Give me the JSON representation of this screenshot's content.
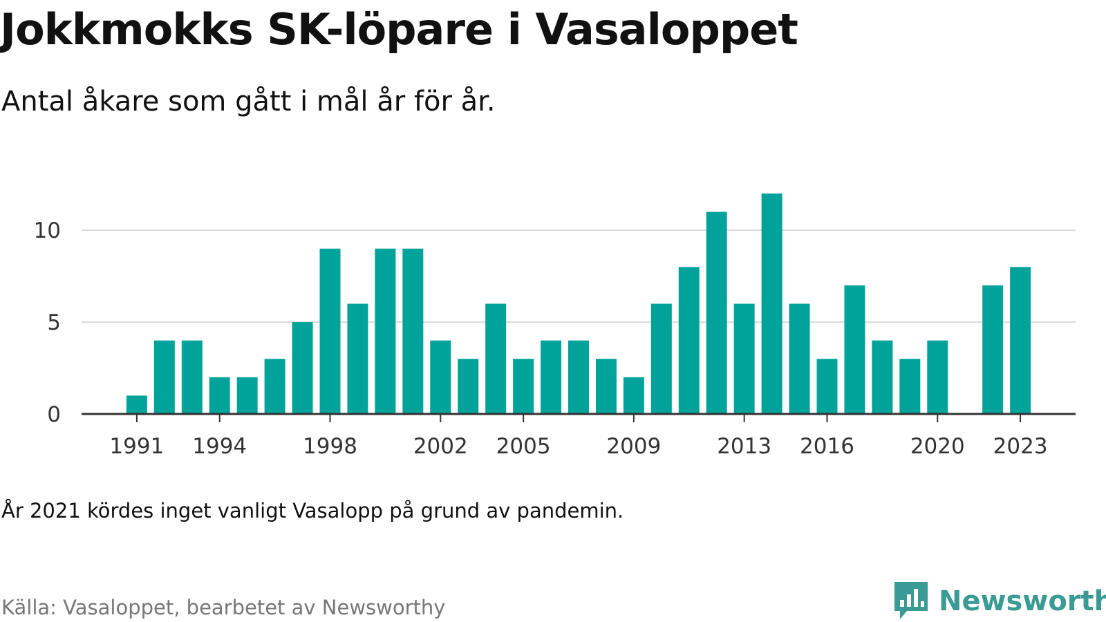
{
  "header": {
    "title": "Jokkmokks SK-löpare i Vasaloppet",
    "subtitle": "Antal åkare som gått i mål år för år."
  },
  "footer": {
    "note": "År 2021 kördes inget vanligt Vasalopp på grund av pandemin.",
    "source": "Källa: Vasaloppet, bearbetet av Newsworthy",
    "brand": "Newsworthy"
  },
  "colors": {
    "bar": "#00a39a",
    "grid": "#d9d9d9",
    "axis": "#333333",
    "brand": "#3a9b95"
  },
  "icons": {
    "brand_logo": "bar-chart-speech-bubble-icon"
  },
  "chart_data": {
    "type": "bar",
    "categories": [
      1991,
      1992,
      1993,
      1994,
      1995,
      1996,
      1997,
      1998,
      1999,
      2000,
      2001,
      2002,
      2003,
      2004,
      2005,
      2006,
      2007,
      2008,
      2009,
      2010,
      2011,
      2012,
      2013,
      2014,
      2015,
      2016,
      2017,
      2018,
      2019,
      2020,
      2021,
      2022,
      2023
    ],
    "values": [
      1,
      4,
      4,
      2,
      2,
      3,
      5,
      9,
      6,
      9,
      9,
      4,
      3,
      6,
      3,
      4,
      4,
      3,
      2,
      6,
      8,
      11,
      6,
      12,
      6,
      3,
      7,
      4,
      3,
      4,
      null,
      7,
      8
    ],
    "x_tick_labels": [
      "1991",
      "1994",
      "1998",
      "2002",
      "2005",
      "2009",
      "2013",
      "2016",
      "2020",
      "2023"
    ],
    "y_ticks": [
      0,
      5,
      10
    ],
    "ylim": [
      0,
      12
    ],
    "xlim": [
      1989,
      2025
    ],
    "grid": true,
    "title": "Jokkmokks SK-löpare i Vasaloppet",
    "subtitle": "Antal åkare som gått i mål år för år.",
    "xlabel": "",
    "ylabel": ""
  }
}
